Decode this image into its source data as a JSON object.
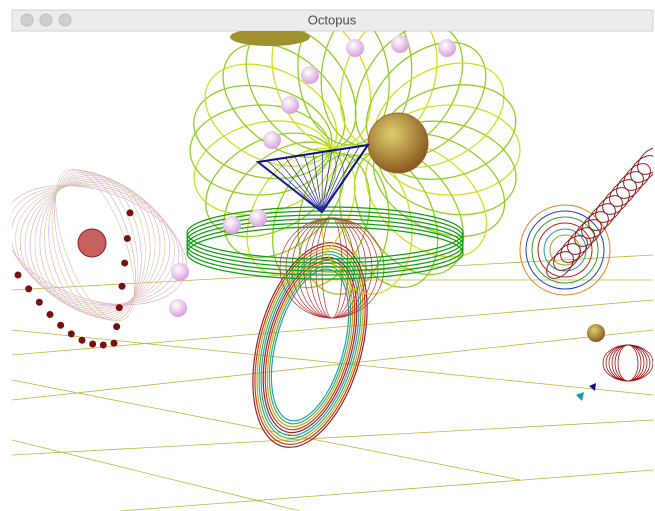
{
  "window": {
    "title": "Octopus"
  }
}
